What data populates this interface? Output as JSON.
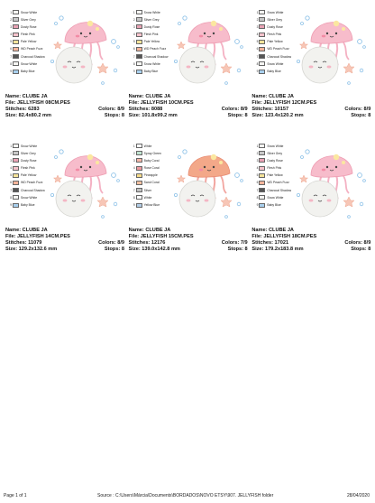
{
  "designs": [
    {
      "name_label": "Name: CLUBE JA",
      "file_label": "File: JELLYFISH 08CM.PES",
      "stitches_label": "Stitches: 6283",
      "size_label": "Size: 82.4x80.2 mm",
      "colors_label": "Colors: 8/9",
      "stops_label": "Stops: 8",
      "palette": [
        {
          "n": "1",
          "name": "Snow White",
          "color": "#f5f5f2"
        },
        {
          "n": "2",
          "name": "Silver Grey",
          "color": "#c8c8c8"
        },
        {
          "n": "3",
          "name": "Dusty Rose",
          "color": "#e8a2b4"
        },
        {
          "n": "4",
          "name": "Flesh Pink",
          "color": "#f6c3cc"
        },
        {
          "n": "5",
          "name": "Pale Yellow",
          "color": "#f5e49a"
        },
        {
          "n": "6",
          "name": "WD Peach Fuzz",
          "color": "#f6b49a"
        },
        {
          "n": "7",
          "name": "Charcoal Shadow",
          "color": "#555555"
        },
        {
          "n": "8",
          "name": "Snow White",
          "color": "#f5f5f2"
        },
        {
          "n": "9",
          "name": "Baby Blue",
          "color": "#a9d0ee"
        }
      ]
    },
    {
      "name_label": "Name: CLUBE JA",
      "file_label": "File: JELLYFISH 10CM.PES",
      "stitches_label": "Stitches: 8088",
      "size_label": "Size: 101.8x99.2 mm",
      "colors_label": "Colors: 8/9",
      "stops_label": "Stops: 8",
      "palette": [
        {
          "n": "1",
          "name": "Snow White",
          "color": "#f5f5f2"
        },
        {
          "n": "2",
          "name": "Silver Grey",
          "color": "#c8c8c8"
        },
        {
          "n": "3",
          "name": "Dusty Rose",
          "color": "#e8a2b4"
        },
        {
          "n": "4",
          "name": "Flesh Pink",
          "color": "#f6c3cc"
        },
        {
          "n": "5",
          "name": "Pale Yellow",
          "color": "#f5e49a"
        },
        {
          "n": "6",
          "name": "WD Peach Fuzz",
          "color": "#f6b49a"
        },
        {
          "n": "7",
          "name": "Charcoal Shadow",
          "color": "#555555"
        },
        {
          "n": "8",
          "name": "Snow White",
          "color": "#f5f5f2"
        },
        {
          "n": "9",
          "name": "Baby Blue",
          "color": "#a9d0ee"
        }
      ]
    },
    {
      "name_label": "Name: CLUBE JA",
      "file_label": "File: JELLYFISH 12CM.PES",
      "stitches_label": "Stitches: 10157",
      "size_label": "Size: 123.4x120.2 mm",
      "colors_label": "Colors: 8/9",
      "stops_label": "Stops: 8",
      "palette": [
        {
          "n": "1",
          "name": "Snow White",
          "color": "#f5f5f2"
        },
        {
          "n": "2",
          "name": "Silver Grey",
          "color": "#c8c8c8"
        },
        {
          "n": "3",
          "name": "Dusty Rose",
          "color": "#e8a2b4"
        },
        {
          "n": "4",
          "name": "Flesh Pink",
          "color": "#f6c3cc"
        },
        {
          "n": "5",
          "name": "Pale Yellow",
          "color": "#f5e49a"
        },
        {
          "n": "6",
          "name": "WD Peach Fuzz",
          "color": "#f6b49a"
        },
        {
          "n": "7",
          "name": "Charcoal Shadow",
          "color": "#555555"
        },
        {
          "n": "8",
          "name": "Snow White",
          "color": "#f5f5f2"
        },
        {
          "n": "9",
          "name": "Baby Blue",
          "color": "#a9d0ee"
        }
      ]
    },
    {
      "name_label": "Name: CLUBE JA",
      "file_label": "File: JELLYFISH 14CM.PES",
      "stitches_label": "Stitches: 11079",
      "size_label": "Size: 129.2x132.6 mm",
      "colors_label": "Colors: 8/9",
      "stops_label": "Stops: 8",
      "palette": [
        {
          "n": "1",
          "name": "Snow White",
          "color": "#f5f5f2"
        },
        {
          "n": "2",
          "name": "Silver Grey",
          "color": "#c8c8c8"
        },
        {
          "n": "3",
          "name": "Dusty Rose",
          "color": "#e8a2b4"
        },
        {
          "n": "4",
          "name": "Flesh Pink",
          "color": "#f6c3cc"
        },
        {
          "n": "5",
          "name": "Pale Yellow",
          "color": "#f5e49a"
        },
        {
          "n": "6",
          "name": "WD Peach Fuzz",
          "color": "#f6b49a"
        },
        {
          "n": "7",
          "name": "Charcoal Shadow",
          "color": "#555555"
        },
        {
          "n": "8",
          "name": "Snow White",
          "color": "#f5f5f2"
        },
        {
          "n": "9",
          "name": "Baby Blue",
          "color": "#a9d0ee"
        }
      ]
    },
    {
      "name_label": "Name: CLUBE JA",
      "file_label": "File: JELLYFISH 15CM.PES",
      "stitches_label": "Stitches: 12176",
      "size_label": "Size: 139.0x142.8 mm",
      "colors_label": "Colors: 7/9",
      "stops_label": "Stops: 8",
      "palette": [
        {
          "n": "1",
          "name": "White",
          "color": "#ffffff"
        },
        {
          "n": "2",
          "name": "Spray Green",
          "color": "#bfe3cf"
        },
        {
          "n": "3",
          "name": "Baby Coral",
          "color": "#f4b6a8"
        },
        {
          "n": "4",
          "name": "Rose Coral",
          "color": "#ee9aa0"
        },
        {
          "n": "5",
          "name": "Pineapple",
          "color": "#f6dc8a"
        },
        {
          "n": "6",
          "name": "Sand Coral",
          "color": "#f2c0a0"
        },
        {
          "n": "7",
          "name": "Silver",
          "color": "#c0c0c0"
        },
        {
          "n": "8",
          "name": "White",
          "color": "#ffffff"
        },
        {
          "n": "9",
          "name": "Yellow Blue",
          "color": "#b2cde6"
        }
      ]
    },
    {
      "name_label": "Name: CLUBE JA",
      "file_label": "File: JELLYFISH 18CM.PES",
      "stitches_label": "Stitches: 17021",
      "size_label": "Size: 179.2x183.8 mm",
      "colors_label": "Colors: 8/9",
      "stops_label": "Stops: 8",
      "palette": [
        {
          "n": "1",
          "name": "Snow White",
          "color": "#f5f5f2"
        },
        {
          "n": "2",
          "name": "Silver Grey",
          "color": "#c8c8c8"
        },
        {
          "n": "3",
          "name": "Dusty Rose",
          "color": "#e8a2b4"
        },
        {
          "n": "4",
          "name": "Flesh Pink",
          "color": "#f6c3cc"
        },
        {
          "n": "5",
          "name": "Pale Yellow",
          "color": "#f5e49a"
        },
        {
          "n": "6",
          "name": "WD Peach Fuzz",
          "color": "#f6b49a"
        },
        {
          "n": "7",
          "name": "Charcoal Shadow",
          "color": "#555555"
        },
        {
          "n": "8",
          "name": "Snow White",
          "color": "#f5f5f2"
        },
        {
          "n": "9",
          "name": "Baby Blue",
          "color": "#a9d0ee"
        }
      ]
    }
  ],
  "footer": {
    "page": "Page 1 of 1",
    "source": "Source : C:\\Users\\Márcia\\Documents\\BORDADOS\\NOVO ETSY\\907. JELLYFISH folder",
    "date": "28/04/2020"
  }
}
